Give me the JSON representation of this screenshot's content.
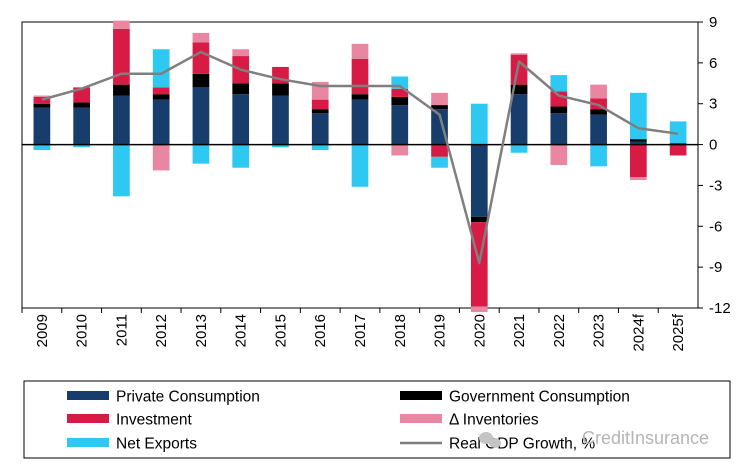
{
  "chart_data": {
    "type": "bar",
    "stacked": true,
    "categories": [
      "2009",
      "2010",
      "2011",
      "2012",
      "2013",
      "2014",
      "2015",
      "2016",
      "2017",
      "2018",
      "2019",
      "2020",
      "2021",
      "2022",
      "2023",
      "2024f",
      "2025f"
    ],
    "ylim": [
      -12,
      9
    ],
    "yticks": [
      9,
      6,
      3,
      0,
      -3,
      -6,
      -9,
      -12
    ],
    "y_axis_side": "right",
    "grid": false,
    "legend_position": "bottom",
    "series": [
      {
        "name": "Private Consumption",
        "type": "bar",
        "color": "#173d6c",
        "values": [
          2.7,
          2.7,
          3.6,
          3.3,
          4.2,
          3.7,
          3.6,
          2.3,
          3.3,
          2.9,
          2.6,
          -5.3,
          3.7,
          2.3,
          2.2,
          0.2,
          0.0
        ]
      },
      {
        "name": "Government Consumption",
        "type": "bar",
        "color": "#000000",
        "values": [
          0.3,
          0.4,
          0.8,
          0.4,
          1.0,
          0.8,
          0.9,
          0.3,
          0.4,
          0.6,
          0.3,
          -0.4,
          0.7,
          0.5,
          0.4,
          0.2,
          0.1
        ]
      },
      {
        "name": "Investment",
        "type": "bar",
        "color": "#d81b45",
        "values": [
          0.5,
          1.1,
          4.1,
          0.5,
          2.3,
          2.0,
          1.2,
          0.7,
          2.6,
          0.6,
          -0.9,
          -6.2,
          2.2,
          1.1,
          0.8,
          -2.4,
          -0.8
        ]
      },
      {
        "name": "Δ Inventories",
        "type": "bar",
        "color": "#e986a1",
        "values": [
          0.1,
          0.0,
          0.6,
          -1.9,
          0.7,
          0.5,
          0.0,
          1.3,
          1.1,
          -0.8,
          0.9,
          -0.4,
          0.1,
          -1.5,
          1.0,
          -0.2,
          0.0
        ]
      },
      {
        "name": "Net Exports",
        "type": "bar",
        "color": "#2ec9f3",
        "values": [
          -0.4,
          -0.2,
          -3.8,
          2.8,
          -1.4,
          -1.7,
          -0.2,
          -0.4,
          -3.1,
          0.9,
          -0.8,
          3.0,
          -0.6,
          1.2,
          -1.6,
          3.4,
          1.6
        ]
      },
      {
        "name": "Real GDP Growth, %",
        "type": "line",
        "color": "#7f7f7f",
        "values": [
          3.3,
          4.1,
          5.2,
          5.2,
          6.8,
          5.5,
          4.8,
          4.3,
          4.3,
          4.3,
          2.2,
          -8.7,
          6.1,
          3.6,
          2.9,
          1.2,
          0.8
        ]
      }
    ]
  },
  "legend": [
    {
      "label": "Private Consumption",
      "swatch": "bar",
      "color": "#173d6c"
    },
    {
      "label": "Government Consumption",
      "swatch": "bar",
      "color": "#000000"
    },
    {
      "label": "Investment",
      "swatch": "bar",
      "color": "#d81b45"
    },
    {
      "label": "Δ Inventories",
      "swatch": "bar",
      "color": "#e986a1"
    },
    {
      "label": "Net Exports",
      "swatch": "bar",
      "color": "#2ec9f3"
    },
    {
      "label": "Real GDP Growth, %",
      "swatch": "line",
      "color": "#7f7f7f"
    }
  ],
  "watermark": "CreditInsurance",
  "watermark_icon": "wechat-icon"
}
